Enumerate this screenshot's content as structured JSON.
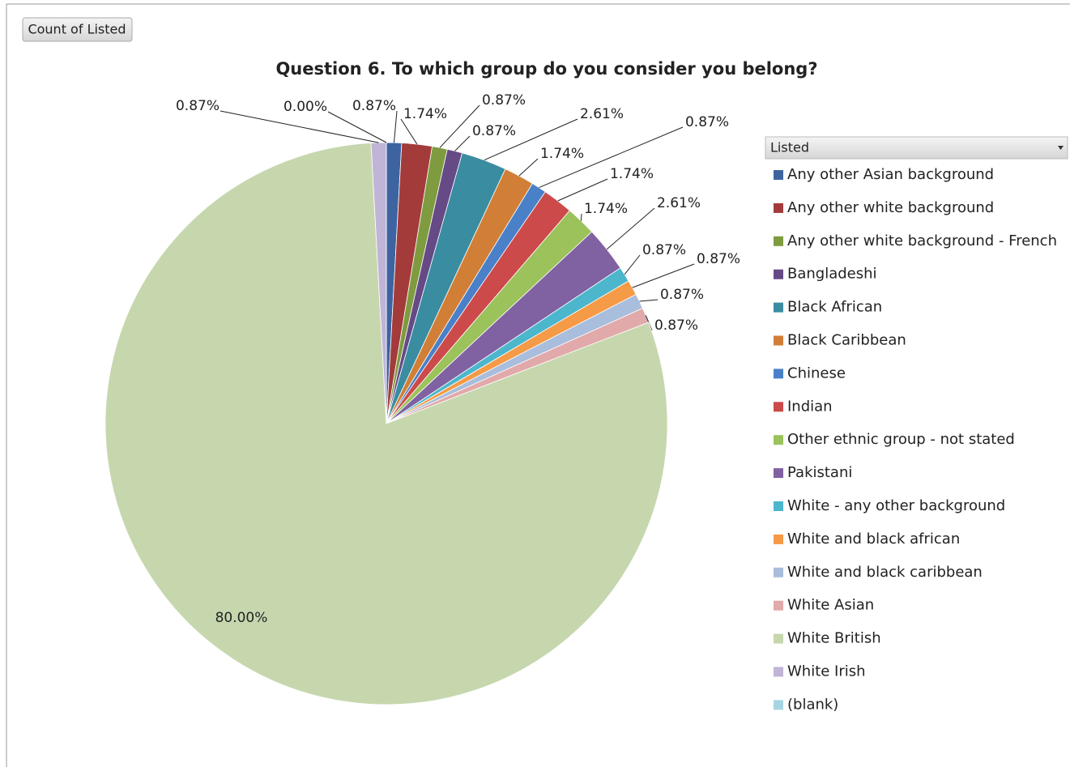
{
  "chart_data": {
    "type": "pie",
    "title": "Question 6. To which group do you consider you belong?",
    "button": "Count of Listed",
    "legend_title": "Listed",
    "categories": [
      "Any other Asian background",
      "Any other white background",
      "Any other white background - French",
      "Bangladeshi",
      "Black African",
      "Black Caribbean",
      "Chinese",
      "Indian",
      "Other ethnic group - not stated",
      "Pakistani",
      "White - any other background",
      "White and black african",
      "White and black caribbean",
      "White Asian",
      "White British",
      "White Irish",
      "(blank)"
    ],
    "values": [
      0.87,
      1.74,
      0.87,
      0.87,
      2.61,
      1.74,
      0.87,
      1.74,
      1.74,
      2.61,
      0.87,
      0.87,
      0.87,
      0.87,
      80.0,
      0.87,
      0.0
    ],
    "value_labels": [
      "0.87%",
      "1.74%",
      "0.87%",
      "0.87%",
      "2.61%",
      "1.74%",
      "0.87%",
      "1.74%",
      "1.74%",
      "2.61%",
      "0.87%",
      "0.87%",
      "0.87%",
      "0.87%",
      "80.00%",
      "0.87%",
      "0.00%"
    ],
    "colors": [
      "#3d64a0",
      "#a33b3b",
      "#7f9b40",
      "#654a86",
      "#3a8ca1",
      "#d17f36",
      "#4a80c8",
      "#cc4a4a",
      "#9bc25b",
      "#8061a1",
      "#4bb6cc",
      "#f59a46",
      "#a9bddc",
      "#e1a9a9",
      "#c6d7ae",
      "#c0b4d7",
      "#a6d5e1"
    ],
    "legend": "right"
  }
}
